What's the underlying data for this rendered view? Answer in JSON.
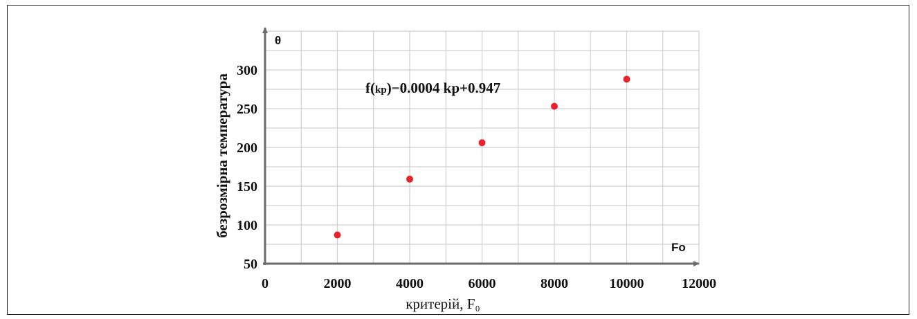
{
  "chart_data": {
    "type": "scatter",
    "title": "",
    "xlabel": "критерій, F₀",
    "ylabel": "безрозмірна температура",
    "x_axis_symbol": "Fo",
    "y_axis_symbol": "θ",
    "xlim": [
      0,
      12000
    ],
    "ylim": [
      50,
      350
    ],
    "x_ticks": [
      "0",
      "2000",
      "4000",
      "6000",
      "8000",
      "10000",
      "12000"
    ],
    "y_ticks": [
      "50",
      "100",
      "150",
      "200",
      "250",
      "300"
    ],
    "grid": true,
    "annotation": {
      "prefix": "f(",
      "subscript": "kp",
      "suffix": ")−0.0004 kp+0.947"
    },
    "series": [
      {
        "color": "#e8222b",
        "x": [
          2000,
          4000,
          6000,
          8000,
          10000
        ],
        "y": [
          87,
          159,
          206,
          253,
          288
        ]
      }
    ]
  }
}
